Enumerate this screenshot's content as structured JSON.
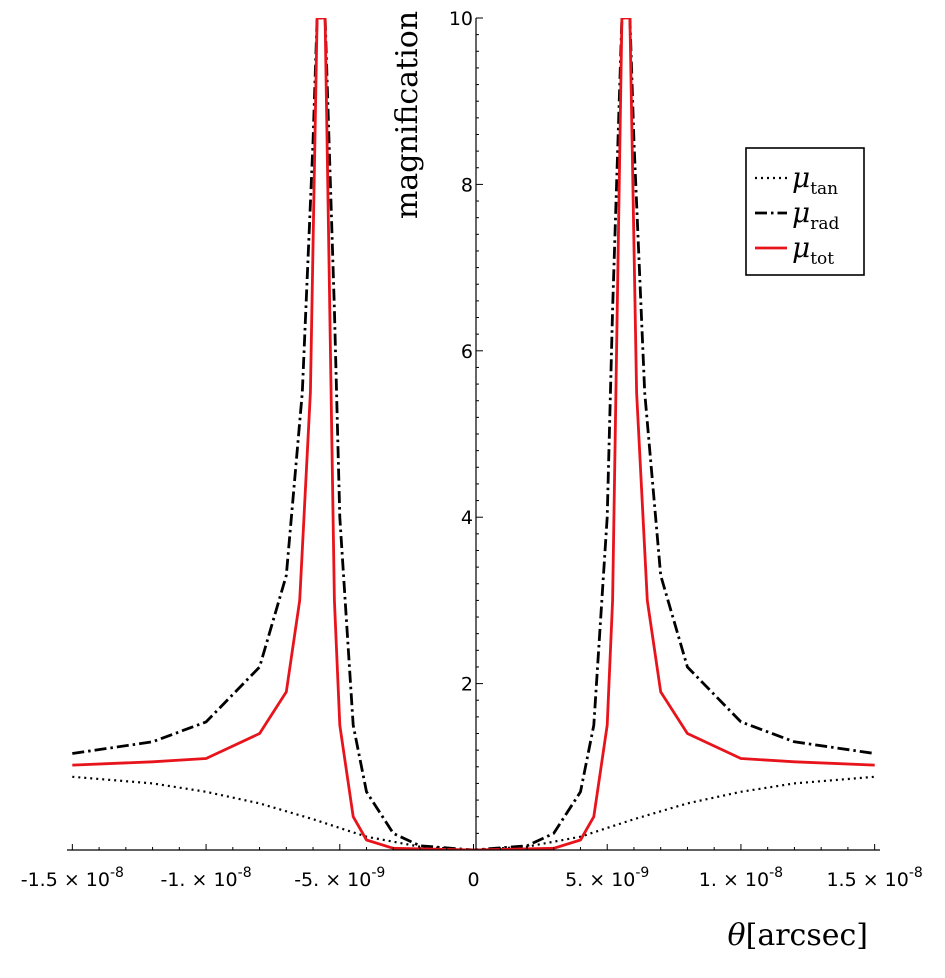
{
  "chart_data": {
    "type": "line",
    "xlabel_symbol": "θ",
    "xlabel_unit": "[arcsec]",
    "ylabel": "magnification",
    "xlim": [
      -1.52e-08,
      1.52e-08
    ],
    "ylim": [
      0,
      10
    ],
    "x_ticks": [
      {
        "value": -1.5e-08,
        "mant": "-1.5",
        "exp": "-8"
      },
      {
        "value": -1e-08,
        "mant": "-1.",
        "exp": "-8"
      },
      {
        "value": -5e-09,
        "mant": "-5.",
        "exp": "-9"
      },
      {
        "value": 0,
        "mant": "0",
        "exp": ""
      },
      {
        "value": 5e-09,
        "mant": "5.",
        "exp": "-9"
      },
      {
        "value": 1e-08,
        "mant": "1.",
        "exp": "-8"
      },
      {
        "value": 1.5e-08,
        "mant": "1.5",
        "exp": "-8"
      }
    ],
    "y_ticks": [
      {
        "value": 2,
        "label": "2"
      },
      {
        "value": 4,
        "label": "4"
      },
      {
        "value": 6,
        "label": "6"
      },
      {
        "value": 8,
        "label": "8"
      },
      {
        "value": 10,
        "label": "10"
      }
    ],
    "legend_position": "top-right",
    "series": [
      {
        "name": "μ",
        "sub": "tan",
        "style": "dotted",
        "color": "#000000",
        "points": [
          [
            -1.5e-08,
            0.88
          ],
          [
            -1.2e-08,
            0.8
          ],
          [
            -1e-08,
            0.7
          ],
          [
            -8e-09,
            0.56
          ],
          [
            -6e-09,
            0.37
          ],
          [
            -4e-09,
            0.16
          ],
          [
            -2e-09,
            0.04
          ],
          [
            0,
            0
          ],
          [
            2e-09,
            0.04
          ],
          [
            4e-09,
            0.16
          ],
          [
            6e-09,
            0.37
          ],
          [
            8e-09,
            0.56
          ],
          [
            1e-08,
            0.7
          ],
          [
            1.2e-08,
            0.8
          ],
          [
            1.5e-08,
            0.88
          ]
        ]
      },
      {
        "name": "μ",
        "sub": "rad",
        "style": "dashdot",
        "color": "#000000",
        "points": [
          [
            -1.5e-08,
            1.16
          ],
          [
            -1.2e-08,
            1.3
          ],
          [
            -1e-08,
            1.54
          ],
          [
            -8e-09,
            2.2
          ],
          [
            -7e-09,
            3.3
          ],
          [
            -6.4e-09,
            5.5
          ],
          [
            -6e-09,
            8.5
          ],
          [
            -5.85e-09,
            10
          ],
          [
            -5.55e-09,
            10
          ],
          [
            -5.2e-09,
            6.5
          ],
          [
            -5e-09,
            4.0
          ],
          [
            -4.5e-09,
            1.5
          ],
          [
            -4e-09,
            0.7
          ],
          [
            -3e-09,
            0.2
          ],
          [
            -2e-09,
            0.05
          ],
          [
            0,
            0
          ],
          [
            2e-09,
            0.05
          ],
          [
            3e-09,
            0.2
          ],
          [
            4e-09,
            0.7
          ],
          [
            4.5e-09,
            1.5
          ],
          [
            5e-09,
            4.0
          ],
          [
            5.2e-09,
            6.5
          ],
          [
            5.55e-09,
            10
          ],
          [
            5.85e-09,
            10
          ],
          [
            6e-09,
            8.5
          ],
          [
            6.4e-09,
            5.5
          ],
          [
            7e-09,
            3.3
          ],
          [
            8e-09,
            2.2
          ],
          [
            1e-08,
            1.54
          ],
          [
            1.2e-08,
            1.3
          ],
          [
            1.5e-08,
            1.16
          ]
        ]
      },
      {
        "name": "μ",
        "sub": "tot",
        "style": "solid",
        "color": "#e8141c",
        "points": [
          [
            -1.5e-08,
            1.02
          ],
          [
            -1.2e-08,
            1.06
          ],
          [
            -1e-08,
            1.1
          ],
          [
            -8e-09,
            1.4
          ],
          [
            -7e-09,
            1.9
          ],
          [
            -6.5e-09,
            3.0
          ],
          [
            -6.1e-09,
            5.5
          ],
          [
            -5.85e-09,
            10
          ],
          [
            -5.55e-09,
            10
          ],
          [
            -5.4e-09,
            7.0
          ],
          [
            -5.2e-09,
            3.0
          ],
          [
            -5e-09,
            1.5
          ],
          [
            -4.5e-09,
            0.4
          ],
          [
            -4e-09,
            0.12
          ],
          [
            -3e-09,
            0.02
          ],
          [
            0,
            0
          ],
          [
            3e-09,
            0.02
          ],
          [
            4e-09,
            0.12
          ],
          [
            4.5e-09,
            0.4
          ],
          [
            5e-09,
            1.5
          ],
          [
            5.2e-09,
            3.0
          ],
          [
            5.4e-09,
            7.0
          ],
          [
            5.55e-09,
            10
          ],
          [
            5.85e-09,
            10
          ],
          [
            6.1e-09,
            5.5
          ],
          [
            6.5e-09,
            3.0
          ],
          [
            7e-09,
            1.9
          ],
          [
            8e-09,
            1.4
          ],
          [
            1e-08,
            1.1
          ],
          [
            1.2e-08,
            1.06
          ],
          [
            1.5e-08,
            1.02
          ]
        ]
      }
    ]
  }
}
